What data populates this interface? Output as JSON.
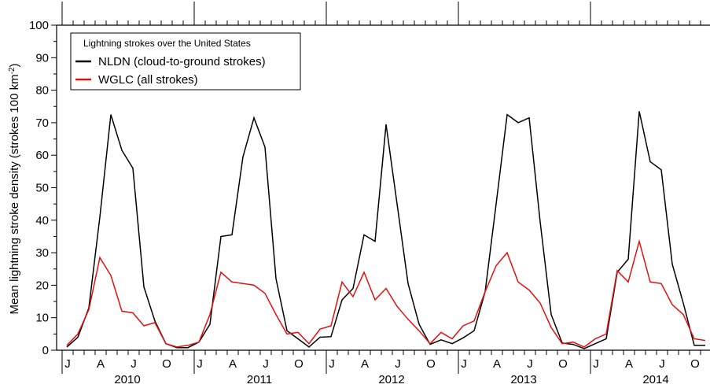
{
  "chart_data": {
    "type": "line",
    "ylabel": "Mean lightning stroke density (strokes 100 km",
    "ylabel_sup": "-2",
    "ylabel_close": ")",
    "ylim": [
      0,
      100
    ],
    "yticks": [
      "0",
      "10",
      "20",
      "30",
      "40",
      "50",
      "60",
      "70",
      "80",
      "90",
      "100"
    ],
    "x_month_labels": [
      "J",
      "A",
      "J",
      "O",
      "J",
      "A",
      "J",
      "O",
      "J",
      "A",
      "J",
      "O",
      "J",
      "A",
      "J",
      "O",
      "J",
      "A",
      "J",
      "O"
    ],
    "year_labels": [
      "2010",
      "2011",
      "2012",
      "2013",
      "2014"
    ],
    "x_start": "2010-01",
    "x_end": "2014-12",
    "legend_title": "Lightning strokes over the United States",
    "legend_position": "top-left",
    "series": [
      {
        "name": "NLDN (cloud-to-ground strokes)",
        "color": "#000000",
        "values": [
          1.0,
          4.0,
          13.0,
          41.0,
          72.5,
          61.5,
          56.0,
          19.5,
          9.0,
          2.0,
          0.8,
          0.8,
          2.5,
          8.0,
          35.0,
          35.5,
          59.5,
          71.5,
          62.5,
          22.0,
          6.0,
          3.5,
          1.0,
          4.0,
          4.2,
          15.5,
          19.0,
          35.5,
          33.5,
          69.5,
          45.0,
          20.5,
          8.0,
          1.8,
          3.2,
          2.0,
          3.8,
          6.0,
          18.0,
          45.0,
          72.5,
          70.0,
          71.5,
          39.5,
          11.0,
          2.2,
          1.8,
          0.5,
          2.0,
          3.5,
          24.0,
          28.0,
          73.5,
          58.0,
          55.5,
          26.5,
          14.5,
          1.5,
          1.5
        ]
      },
      {
        "name": "WGLC (all strokes)",
        "color": "#e01010",
        "values": [
          1.5,
          5.0,
          12.5,
          28.5,
          23.0,
          12.0,
          11.5,
          7.5,
          8.5,
          2.0,
          1.0,
          1.5,
          2.5,
          11.0,
          24.0,
          21.0,
          20.5,
          20.0,
          17.5,
          11.0,
          5.0,
          5.5,
          2.0,
          6.5,
          7.5,
          21.0,
          16.5,
          24.0,
          15.5,
          19.0,
          13.5,
          9.5,
          6.0,
          2.0,
          5.5,
          3.5,
          7.5,
          9.0,
          18.0,
          26.0,
          30.0,
          21.0,
          18.5,
          14.5,
          7.0,
          2.0,
          2.5,
          1.0,
          3.5,
          5.0,
          24.5,
          21.0,
          33.5,
          21.0,
          20.5,
          14.0,
          11.0,
          3.5,
          3.0
        ]
      }
    ]
  }
}
